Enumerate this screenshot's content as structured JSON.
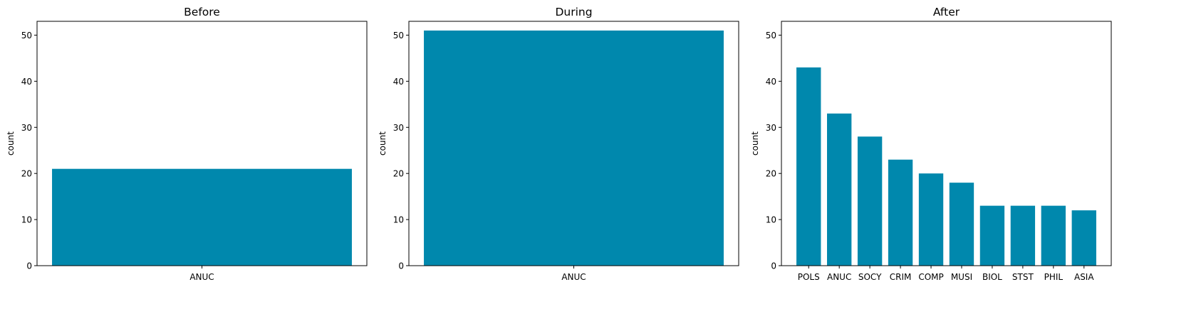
{
  "chart_data": [
    {
      "type": "bar",
      "title": "Before",
      "xlabel": "",
      "ylabel": "count",
      "categories": [
        "ANUC"
      ],
      "values": [
        21
      ],
      "ylim": [
        0,
        53
      ],
      "yticks": [
        0,
        10,
        20,
        30,
        40,
        50
      ],
      "grid": false,
      "bar_color": "#0088ad"
    },
    {
      "type": "bar",
      "title": "During",
      "xlabel": "",
      "ylabel": "count",
      "categories": [
        "ANUC"
      ],
      "values": [
        51
      ],
      "ylim": [
        0,
        53
      ],
      "yticks": [
        0,
        10,
        20,
        30,
        40,
        50
      ],
      "grid": false,
      "bar_color": "#0088ad"
    },
    {
      "type": "bar",
      "title": "After",
      "xlabel": "",
      "ylabel": "count",
      "categories": [
        "POLS",
        "ANUC",
        "SOCY",
        "CRIM",
        "COMP",
        "MUSI",
        "BIOL",
        "STST",
        "PHIL",
        "ASIA"
      ],
      "values": [
        43,
        33,
        28,
        23,
        20,
        18,
        13,
        13,
        13,
        12
      ],
      "ylim": [
        0,
        53
      ],
      "yticks": [
        0,
        10,
        20,
        30,
        40,
        50
      ],
      "grid": false,
      "bar_color": "#0088ad"
    }
  ]
}
